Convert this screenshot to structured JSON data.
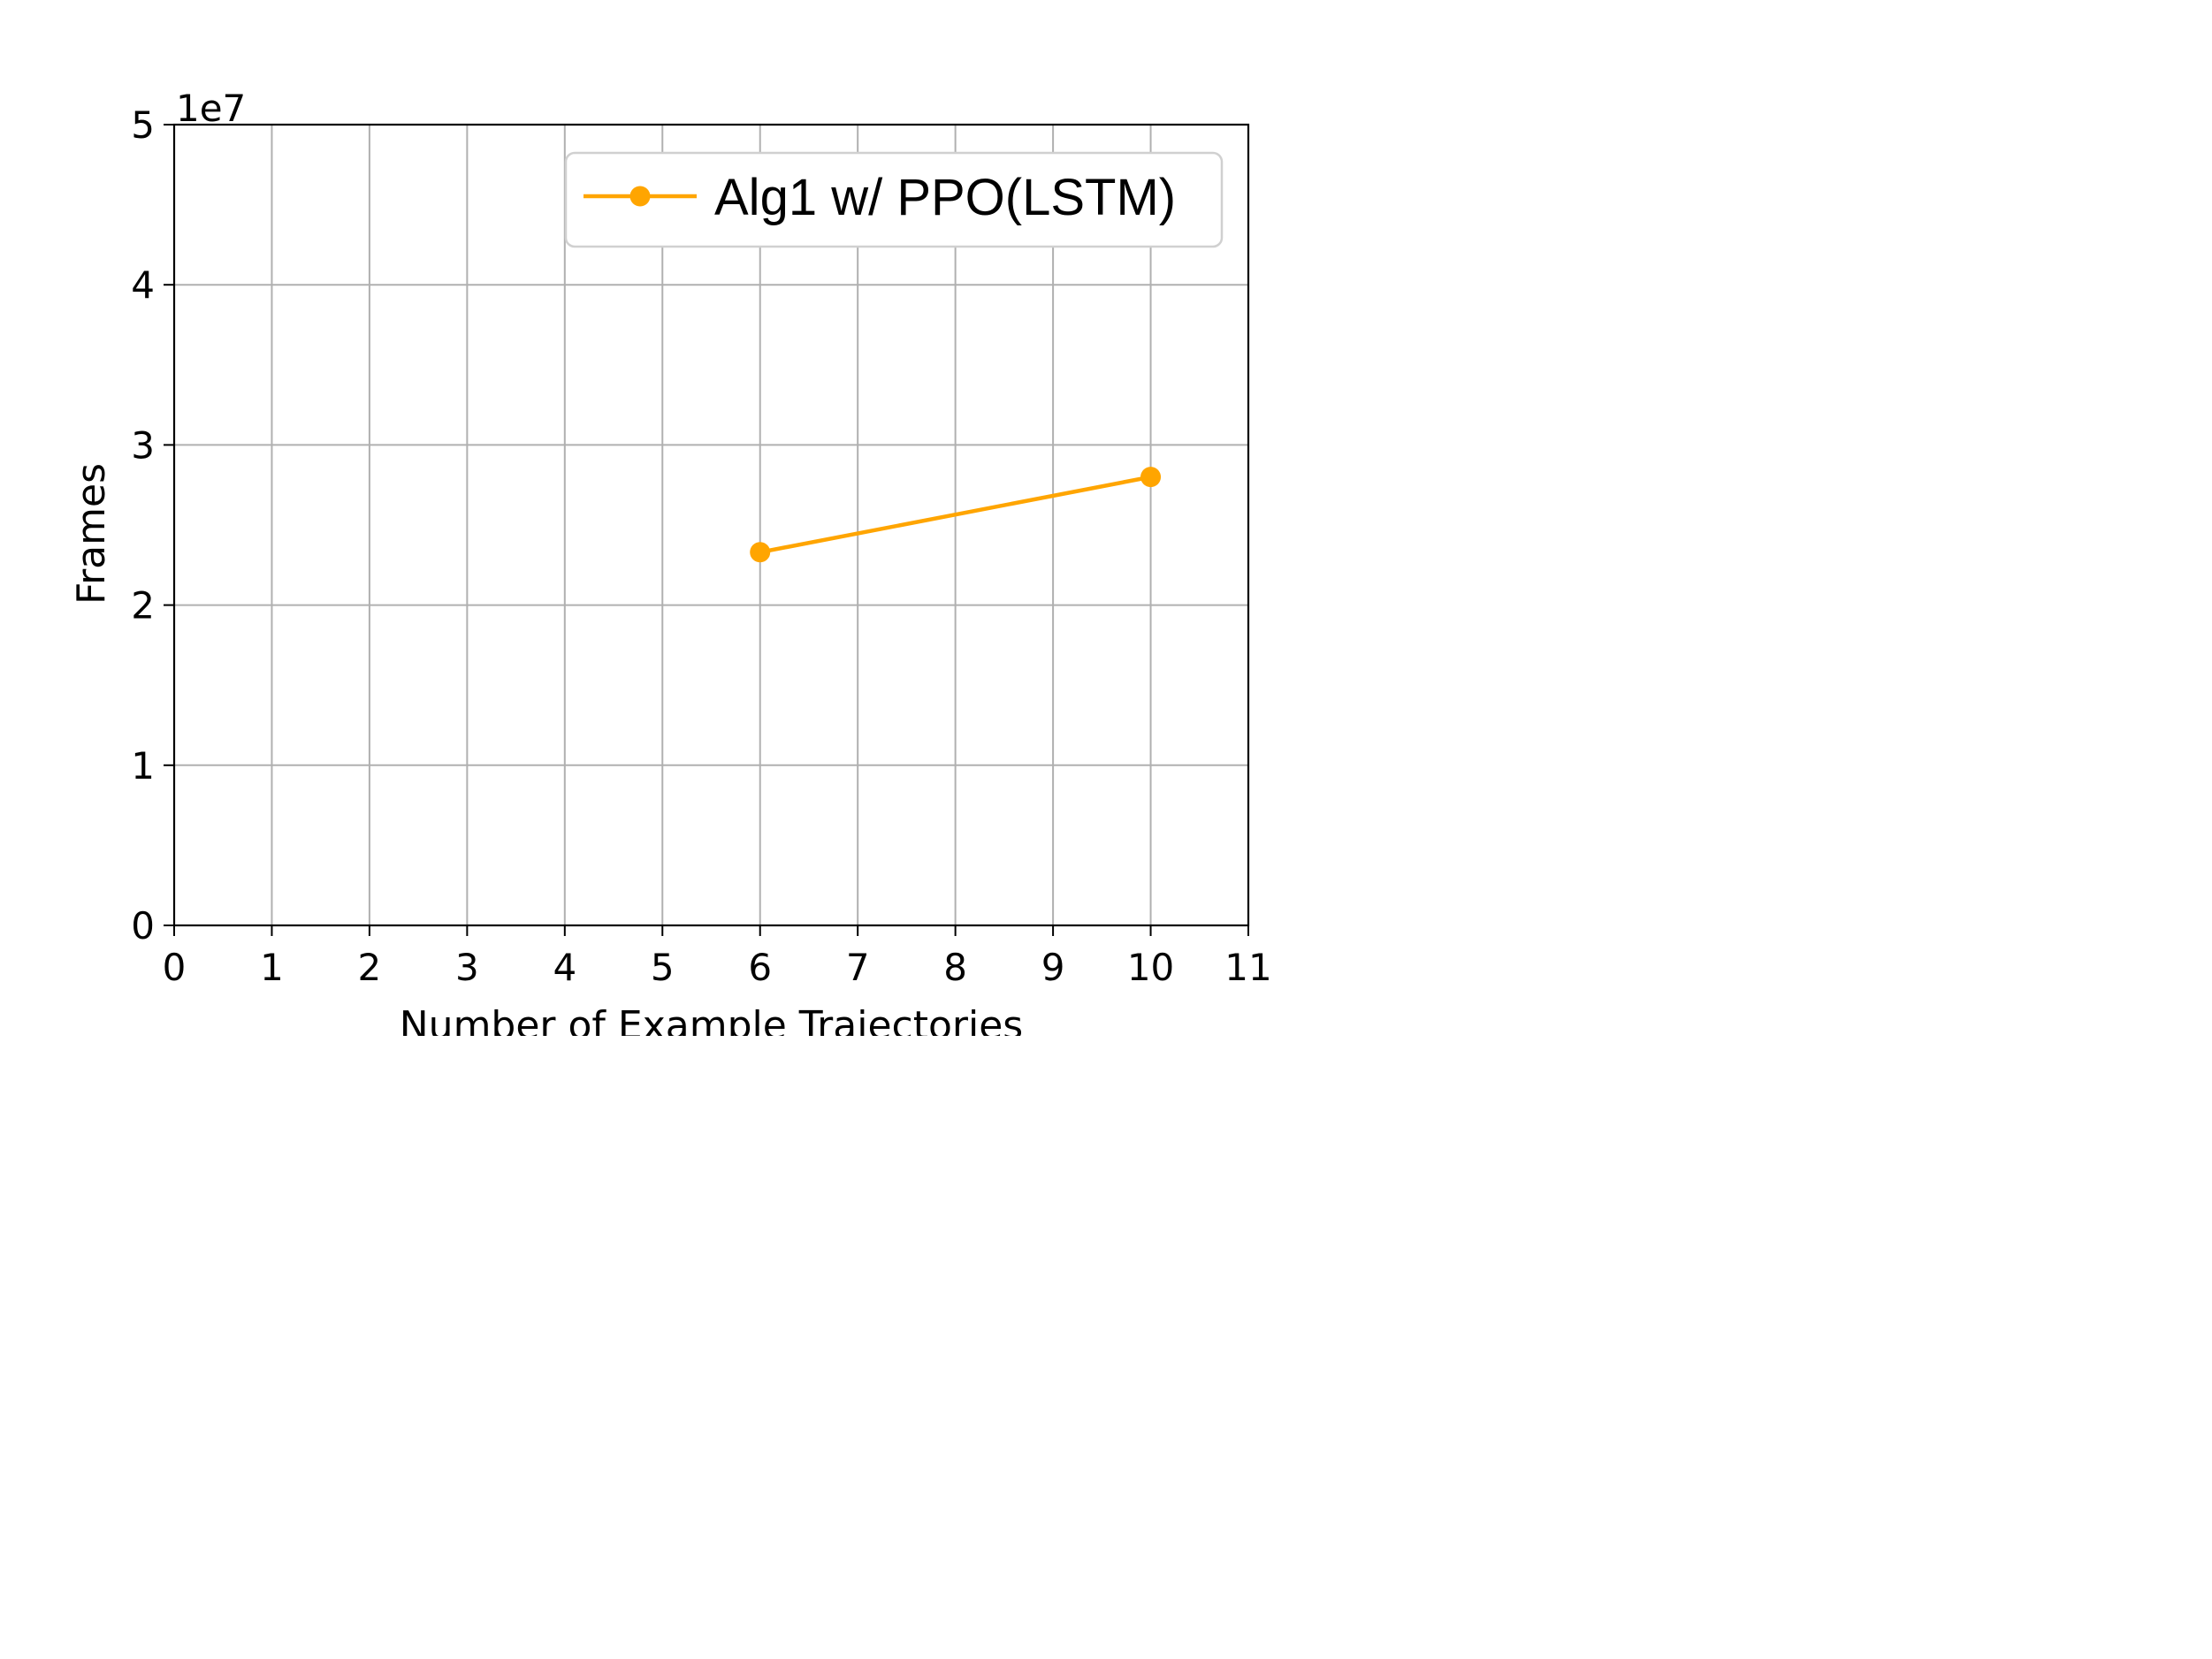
{
  "chart_data": {
    "type": "line",
    "title": "",
    "xlabel": "Number of Example Trajectories",
    "ylabel": "Frames",
    "y_offset_label": "1e7",
    "xlim": [
      0,
      11
    ],
    "ylim": [
      0,
      50000000
    ],
    "x_ticks": [
      0,
      1,
      2,
      3,
      4,
      5,
      6,
      7,
      8,
      9,
      10,
      11
    ],
    "x_tick_labels": [
      "0",
      "1",
      "2",
      "3",
      "4",
      "5",
      "6",
      "7",
      "8",
      "9",
      "10",
      "11"
    ],
    "y_ticks": [
      0,
      10000000,
      20000000,
      30000000,
      40000000,
      50000000
    ],
    "y_tick_labels": [
      "0",
      "1",
      "2",
      "3",
      "4",
      "5"
    ],
    "grid": true,
    "legend_position": "top-right",
    "series": [
      {
        "name": "Alg1 w/ PPO(LSTM)",
        "color": "#FFA500",
        "marker": "circle",
        "x": [
          6,
          10
        ],
        "y": [
          23300000,
          28000000
        ]
      }
    ]
  }
}
